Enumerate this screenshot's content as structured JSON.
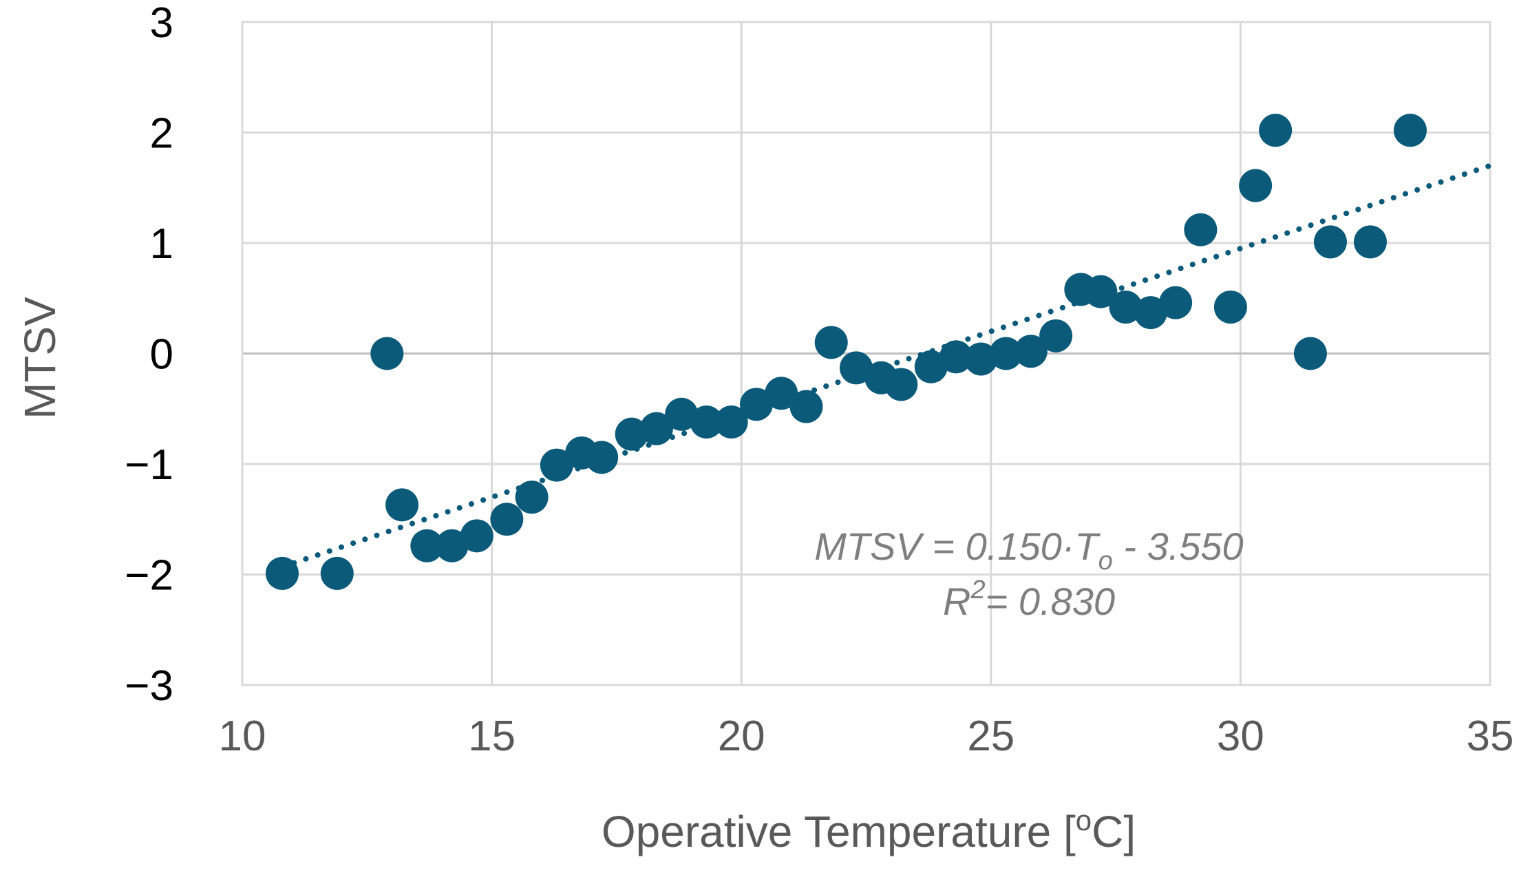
{
  "chart_data": {
    "type": "scatter",
    "title": "",
    "xlabel": "Operative Temperature [oC]",
    "xlabel_parts": {
      "prefix": "Operative Temperature [",
      "superscript": "o",
      "suffix": "C]"
    },
    "ylabel": "MTSV",
    "xlim": [
      10,
      35
    ],
    "ylim": [
      -3,
      3
    ],
    "x_ticks": [
      10,
      15,
      20,
      25,
      30,
      35
    ],
    "y_ticks": [
      -3,
      -2,
      -1,
      0,
      1,
      2,
      3
    ],
    "x_tick_labels": [
      "10",
      "15",
      "20",
      "25",
      "30",
      "35"
    ],
    "y_tick_labels": [
      "−3",
      "−2",
      "−1",
      "0",
      "1",
      "2",
      "3"
    ],
    "grid": true,
    "color": "#0b5a7a",
    "series": [
      {
        "name": "MTSV",
        "points": [
          [
            10.8,
            -1.99
          ],
          [
            11.9,
            -1.99
          ],
          [
            12.9,
            0.0
          ],
          [
            13.2,
            -1.37
          ],
          [
            13.7,
            -1.74
          ],
          [
            14.2,
            -1.74
          ],
          [
            14.7,
            -1.65
          ],
          [
            15.3,
            -1.5
          ],
          [
            15.8,
            -1.3
          ],
          [
            16.3,
            -1.01
          ],
          [
            16.8,
            -0.9
          ],
          [
            17.2,
            -0.94
          ],
          [
            17.8,
            -0.73
          ],
          [
            18.3,
            -0.68
          ],
          [
            18.8,
            -0.55
          ],
          [
            19.3,
            -0.62
          ],
          [
            19.8,
            -0.62
          ],
          [
            20.3,
            -0.46
          ],
          [
            20.8,
            -0.36
          ],
          [
            21.3,
            -0.48
          ],
          [
            21.8,
            0.1
          ],
          [
            22.3,
            -0.13
          ],
          [
            22.8,
            -0.22
          ],
          [
            23.2,
            -0.28
          ],
          [
            23.8,
            -0.12
          ],
          [
            24.3,
            -0.03
          ],
          [
            24.8,
            -0.05
          ],
          [
            25.3,
            0.0
          ],
          [
            25.8,
            0.02
          ],
          [
            26.3,
            0.16
          ],
          [
            26.8,
            0.58
          ],
          [
            27.2,
            0.56
          ],
          [
            27.7,
            0.42
          ],
          [
            28.2,
            0.37
          ],
          [
            28.7,
            0.46
          ],
          [
            29.2,
            1.12
          ],
          [
            29.8,
            0.42
          ],
          [
            30.3,
            1.52
          ],
          [
            30.7,
            2.02
          ],
          [
            31.4,
            0.0
          ],
          [
            31.8,
            1.01
          ],
          [
            32.6,
            1.01
          ],
          [
            33.4,
            2.02
          ]
        ]
      }
    ],
    "trendline": {
      "type": "linear",
      "slope": 0.15,
      "intercept": -3.55,
      "x_range": [
        10.8,
        35.0
      ]
    },
    "annotation": {
      "line1_parts": {
        "a": "MTSV = 0.150·T",
        "sub": "o",
        "b": " - 3.550"
      },
      "line2_parts": {
        "a": "R",
        "sup": "2",
        "b": "= 0.830"
      }
    }
  }
}
